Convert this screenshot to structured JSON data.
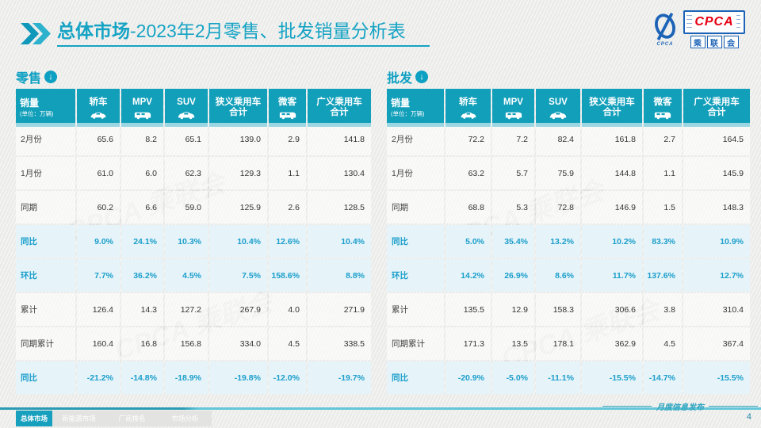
{
  "title": {
    "bold": "总体市场",
    "rest": "-2023年2月零售、批发销量分析表"
  },
  "logo": {
    "cpca": "CPCA",
    "swoosh_sub": "CPCA",
    "cn_chars": [
      "乘",
      "联",
      "会"
    ]
  },
  "watermark": "CPCA 乘联会",
  "table_header": {
    "col0_title": "销量",
    "col0_sub": "(单位：万辆)",
    "columns": [
      {
        "label": "轿车",
        "icon": "sedan-icon"
      },
      {
        "label": "MPV",
        "icon": "mpv-icon"
      },
      {
        "label": "SUV",
        "icon": "suv-icon"
      },
      {
        "label": "狭义乘用车",
        "label2": "合计"
      },
      {
        "label": "微客",
        "icon": "microvan-icon"
      },
      {
        "label": "广义乘用车",
        "label2": "合计"
      }
    ]
  },
  "tables": [
    {
      "label": "零售",
      "rows": [
        {
          "label": "2月份",
          "type": "normal",
          "values": [
            "65.6",
            "8.2",
            "65.1",
            "139.0",
            "2.9",
            "141.8"
          ]
        },
        {
          "label": "1月份",
          "type": "normal",
          "values": [
            "61.0",
            "6.0",
            "62.3",
            "129.3",
            "1.1",
            "130.4"
          ]
        },
        {
          "label": "同期",
          "type": "normal",
          "values": [
            "60.2",
            "6.6",
            "59.0",
            "125.9",
            "2.6",
            "128.5"
          ]
        },
        {
          "label": "同比",
          "type": "highlight",
          "values": [
            "9.0%",
            "24.1%",
            "10.3%",
            "10.4%",
            "12.6%",
            "10.4%"
          ]
        },
        {
          "label": "环比",
          "type": "highlight",
          "values": [
            "7.7%",
            "36.2%",
            "4.5%",
            "7.5%",
            "158.6%",
            "8.8%"
          ]
        },
        {
          "label": "累计",
          "type": "normal",
          "values": [
            "126.4",
            "14.3",
            "127.2",
            "267.9",
            "4.0",
            "271.9"
          ]
        },
        {
          "label": "同期累计",
          "type": "normal",
          "values": [
            "160.4",
            "16.8",
            "156.8",
            "334.0",
            "4.5",
            "338.5"
          ]
        },
        {
          "label": "同比",
          "type": "highlight",
          "values": [
            "-21.2%",
            "-14.8%",
            "-18.9%",
            "-19.8%",
            "-12.0%",
            "-19.7%"
          ]
        }
      ]
    },
    {
      "label": "批发",
      "rows": [
        {
          "label": "2月份",
          "type": "normal",
          "values": [
            "72.2",
            "7.2",
            "82.4",
            "161.8",
            "2.7",
            "164.5"
          ]
        },
        {
          "label": "1月份",
          "type": "normal",
          "values": [
            "63.2",
            "5.7",
            "75.9",
            "144.8",
            "1.1",
            "145.9"
          ]
        },
        {
          "label": "同期",
          "type": "normal",
          "values": [
            "68.8",
            "5.3",
            "72.8",
            "146.9",
            "1.5",
            "148.3"
          ]
        },
        {
          "label": "同比",
          "type": "highlight",
          "values": [
            "5.0%",
            "35.4%",
            "13.2%",
            "10.2%",
            "83.3%",
            "10.9%"
          ]
        },
        {
          "label": "环比",
          "type": "highlight",
          "values": [
            "14.2%",
            "26.9%",
            "8.6%",
            "11.7%",
            "137.6%",
            "12.7%"
          ]
        },
        {
          "label": "累计",
          "type": "normal",
          "values": [
            "135.5",
            "12.9",
            "158.3",
            "306.6",
            "3.8",
            "310.4"
          ]
        },
        {
          "label": "同期累计",
          "type": "normal",
          "values": [
            "171.3",
            "13.5",
            "178.1",
            "362.9",
            "4.5",
            "367.4"
          ]
        },
        {
          "label": "同比",
          "type": "highlight",
          "values": [
            "-20.9%",
            "-5.0%",
            "-11.1%",
            "-15.5%",
            "-14.7%",
            "-15.5%"
          ]
        }
      ]
    }
  ],
  "footer": {
    "tabs": [
      {
        "label": "总体市场",
        "active": true
      },
      {
        "label": "新能源市场",
        "active": false
      },
      {
        "label": "厂商排名",
        "active": false
      },
      {
        "label": "市场分析",
        "active": false
      }
    ],
    "note": "月度信息发布",
    "page": "4"
  },
  "colors": {
    "accent_teal": "#16a3c4",
    "header_bg": "#129fba",
    "highlight_bg": "#e6f4f9",
    "highlight_text": "#1b9ecb",
    "logo_blue": "#1c63b7",
    "logo_red": "#e60012"
  }
}
